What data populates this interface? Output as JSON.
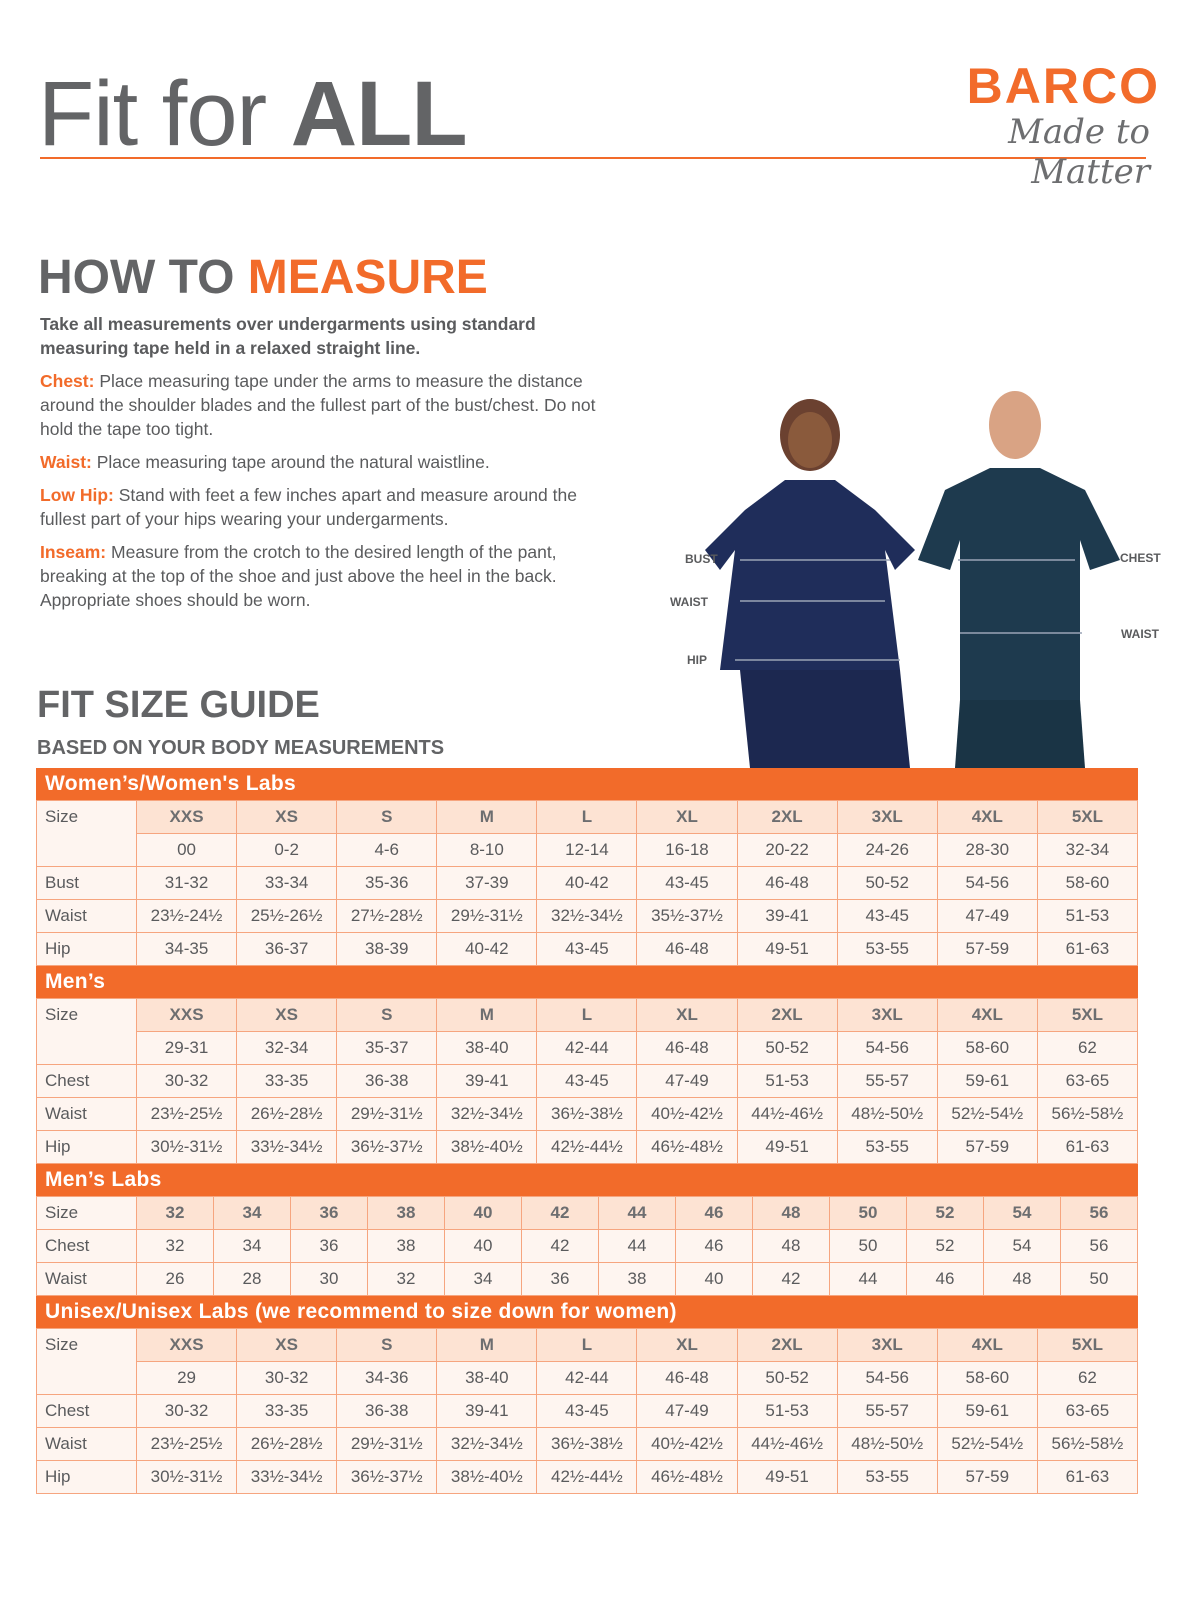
{
  "header": {
    "title_light": "Fit for ",
    "title_bold": "ALL",
    "logo_brand": "BARCO",
    "logo_tagline": "Made to Matter"
  },
  "measure": {
    "heading_a": "HOW TO ",
    "heading_b": "MEASURE",
    "lead": "Take all measurements over undergarments using standard measuring tape held in a relaxed straight line.",
    "items": [
      {
        "key": "Chest:",
        "text": "Place measuring tape under the arms to measure the distance around the shoulder blades and the fullest part of the bust/chest. Do not hold the tape too tight."
      },
      {
        "key": "Waist:",
        "text": "Place measuring tape around the natural waistline."
      },
      {
        "key": "Low Hip:",
        "text": "Stand with feet a few inches apart and measure around the fullest part of your hips wearing your undergarments."
      },
      {
        "key": "Inseam:",
        "text": "Measure from the crotch to the desired length of the pant, breaking at the top of the shoe and just above the heel in the back. Appropriate shoes should be worn."
      }
    ]
  },
  "photo_labels": {
    "bust": "BUST",
    "waist_w": "WAIST",
    "hip": "HIP",
    "chest": "CHEST",
    "waist_m": "WAIST"
  },
  "guide": {
    "title": "FIT SIZE GUIDE",
    "subtitle": "BASED ON YOUR BODY MEASUREMENTS"
  },
  "colors": {
    "accent": "#f26b2a",
    "header_cell": "#fde3d3",
    "body_cell": "#fef5f0",
    "text": "#5a5b5d"
  },
  "tables": [
    {
      "title": "Women’s/Women's Labs",
      "size_label": "Size",
      "sizes": [
        "XXS",
        "XS",
        "S",
        "M",
        "L",
        "XL",
        "2XL",
        "3XL",
        "4XL",
        "5XL"
      ],
      "subsizes": [
        "00",
        "0-2",
        "4-6",
        "8-10",
        "12-14",
        "16-18",
        "20-22",
        "24-26",
        "28-30",
        "32-34"
      ],
      "rows": [
        {
          "label": "Bust",
          "values": [
            "31-32",
            "33-34",
            "35-36",
            "37-39",
            "40-42",
            "43-45",
            "46-48",
            "50-52",
            "54-56",
            "58-60"
          ]
        },
        {
          "label": "Waist",
          "values": [
            "23½-24½",
            "25½-26½",
            "27½-28½",
            "29½-31½",
            "32½-34½",
            "35½-37½",
            "39-41",
            "43-45",
            "47-49",
            "51-53"
          ]
        },
        {
          "label": "Hip",
          "values": [
            "34-35",
            "36-37",
            "38-39",
            "40-42",
            "43-45",
            "46-48",
            "49-51",
            "53-55",
            "57-59",
            "61-63"
          ]
        }
      ]
    },
    {
      "title": "Men’s",
      "size_label": "Size",
      "sizes": [
        "XXS",
        "XS",
        "S",
        "M",
        "L",
        "XL",
        "2XL",
        "3XL",
        "4XL",
        "5XL"
      ],
      "subsizes": [
        "29-31",
        "32-34",
        "35-37",
        "38-40",
        "42-44",
        "46-48",
        "50-52",
        "54-56",
        "58-60",
        "62"
      ],
      "rows": [
        {
          "label": "Chest",
          "values": [
            "30-32",
            "33-35",
            "36-38",
            "39-41",
            "43-45",
            "47-49",
            "51-53",
            "55-57",
            "59-61",
            "63-65"
          ]
        },
        {
          "label": "Waist",
          "values": [
            "23½-25½",
            "26½-28½",
            "29½-31½",
            "32½-34½",
            "36½-38½",
            "40½-42½",
            "44½-46½",
            "48½-50½",
            "52½-54½",
            "56½-58½"
          ]
        },
        {
          "label": "Hip",
          "values": [
            "30½-31½",
            "33½-34½",
            "36½-37½",
            "38½-40½",
            "42½-44½",
            "46½-48½",
            "49-51",
            "53-55",
            "57-59",
            "61-63"
          ]
        }
      ]
    },
    {
      "title": "Men’s Labs",
      "size_label": "Size",
      "sizes": [
        "32",
        "34",
        "36",
        "38",
        "40",
        "42",
        "44",
        "46",
        "48",
        "50",
        "52",
        "54",
        "56"
      ],
      "rows": [
        {
          "label": "Chest",
          "values": [
            "32",
            "34",
            "36",
            "38",
            "40",
            "42",
            "44",
            "46",
            "48",
            "50",
            "52",
            "54",
            "56"
          ]
        },
        {
          "label": "Waist",
          "values": [
            "26",
            "28",
            "30",
            "32",
            "34",
            "36",
            "38",
            "40",
            "42",
            "44",
            "46",
            "48",
            "50"
          ]
        }
      ]
    },
    {
      "title": "Unisex/Unisex Labs (we recommend to size down for women)",
      "size_label": "Size",
      "sizes": [
        "XXS",
        "XS",
        "S",
        "M",
        "L",
        "XL",
        "2XL",
        "3XL",
        "4XL",
        "5XL"
      ],
      "subsizes": [
        "29",
        "30-32",
        "34-36",
        "38-40",
        "42-44",
        "46-48",
        "50-52",
        "54-56",
        "58-60",
        "62"
      ],
      "rows": [
        {
          "label": "Chest",
          "values": [
            "30-32",
            "33-35",
            "36-38",
            "39-41",
            "43-45",
            "47-49",
            "51-53",
            "55-57",
            "59-61",
            "63-65"
          ]
        },
        {
          "label": "Waist",
          "values": [
            "23½-25½",
            "26½-28½",
            "29½-31½",
            "32½-34½",
            "36½-38½",
            "40½-42½",
            "44½-46½",
            "48½-50½",
            "52½-54½",
            "56½-58½"
          ]
        },
        {
          "label": "Hip",
          "values": [
            "30½-31½",
            "33½-34½",
            "36½-37½",
            "38½-40½",
            "42½-44½",
            "46½-48½",
            "49-51",
            "53-55",
            "57-59",
            "61-63"
          ]
        }
      ]
    }
  ]
}
